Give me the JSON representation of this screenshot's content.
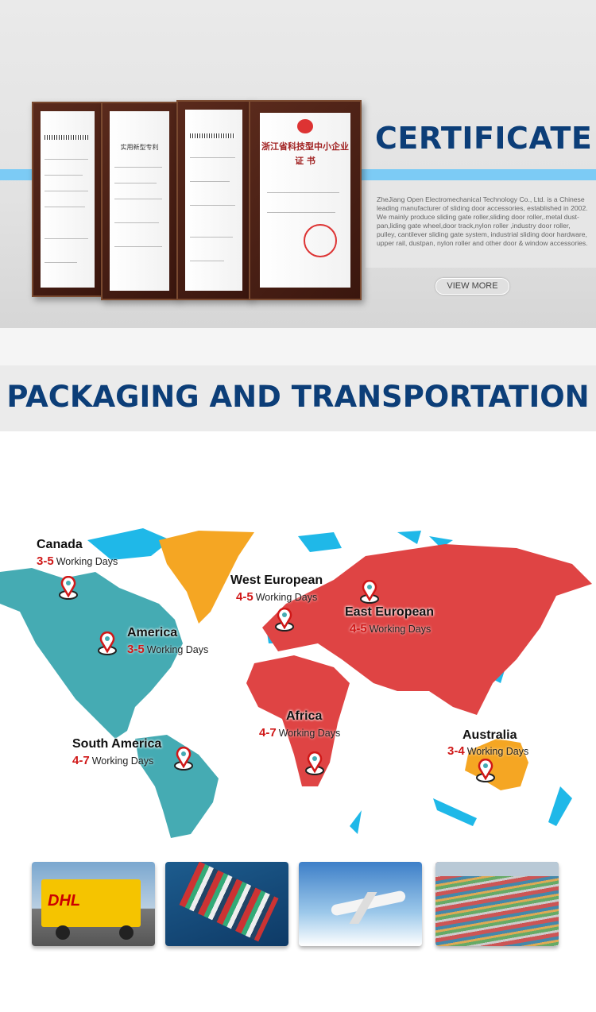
{
  "certificate": {
    "title": "CERTIFICATE",
    "description": "ZheJiang Open Electromechanical Technology Co., Ltd. is a Chinese leading manufacturer of sliding door accessories, established in 2002. We mainly produce sliding gate roller,sliding door roller,.metal dust-pan,liding gate wheel,door track,nylon roller ,industry door roller, pulley, cantilever sliding gate system, industrial sliding door hardware, upper rail, dustpan, nylon roller and other door & window accessories.",
    "view_more": "VIEW MORE",
    "cert4_heading": "浙江省科技型中小企业",
    "cert4_sub": "证 书",
    "cert2_heading": "实用新型专利",
    "accent": "#7ccbf5",
    "title_color": "#0c3e78"
  },
  "packaging": {
    "title": "PACKAGING AND TRANSPORTATION",
    "regions": [
      {
        "name": "Canada",
        "days": "3-5",
        "unit": "Working Days"
      },
      {
        "name": "America",
        "days": "3-5",
        "unit": "Working Days"
      },
      {
        "name": "South America",
        "days": "4-7",
        "unit": "Working Days"
      },
      {
        "name": "West European",
        "days": "4-5",
        "unit": "Working Days"
      },
      {
        "name": "East European",
        "days": "4-5",
        "unit": "Working Days"
      },
      {
        "name": "Africa",
        "days": "4-7",
        "unit": "Working Days"
      },
      {
        "name": "Australia",
        "days": "3-4",
        "unit": "Working Days"
      }
    ],
    "map_colors": {
      "americas": "#45abb3",
      "eurasia_africa": "#df4444",
      "greenland_australia": "#f5a623",
      "islands": "#1fb8e8"
    },
    "photos": [
      "dhl-truck",
      "container-ship",
      "airplane",
      "container-port"
    ],
    "dhl_logo": "DHL"
  }
}
